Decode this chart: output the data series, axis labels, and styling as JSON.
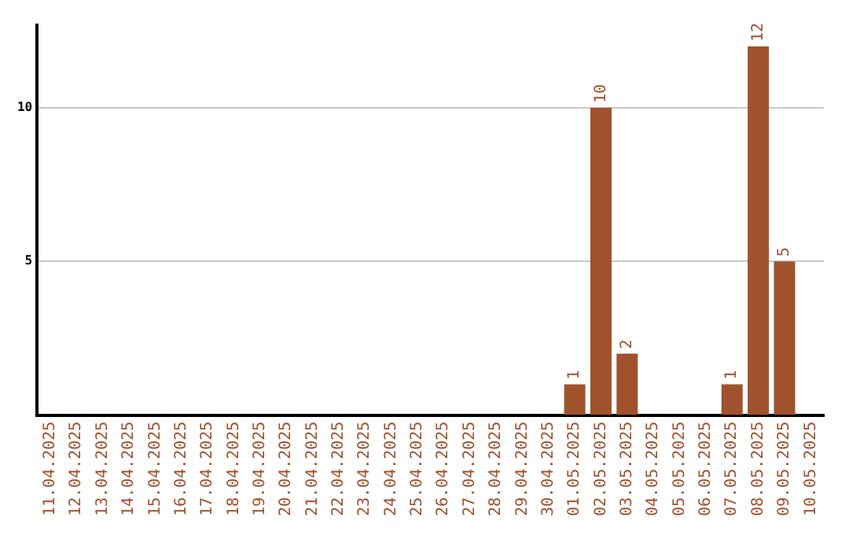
{
  "chart_data": {
    "type": "bar",
    "categories": [
      "11.04.2025",
      "12.04.2025",
      "13.04.2025",
      "14.04.2025",
      "15.04.2025",
      "16.04.2025",
      "17.04.2025",
      "18.04.2025",
      "19.04.2025",
      "20.04.2025",
      "21.04.2025",
      "22.04.2025",
      "23.04.2025",
      "24.04.2025",
      "25.04.2025",
      "26.04.2025",
      "27.04.2025",
      "28.04.2025",
      "29.04.2025",
      "30.04.2025",
      "01.05.2025",
      "02.05.2025",
      "03.05.2025",
      "04.05.2025",
      "05.05.2025",
      "06.05.2025",
      "07.05.2025",
      "08.05.2025",
      "09.05.2025",
      "10.05.2025"
    ],
    "values": [
      null,
      null,
      null,
      null,
      null,
      null,
      null,
      null,
      null,
      null,
      null,
      null,
      null,
      null,
      null,
      null,
      null,
      null,
      null,
      null,
      1,
      10,
      2,
      null,
      null,
      null,
      1,
      12,
      5,
      null
    ],
    "color": "#a0522d",
    "ylim": [
      0,
      12.7
    ],
    "yticks": [
      5,
      10
    ],
    "grid": "y",
    "data_labels": true,
    "legend": false
  }
}
